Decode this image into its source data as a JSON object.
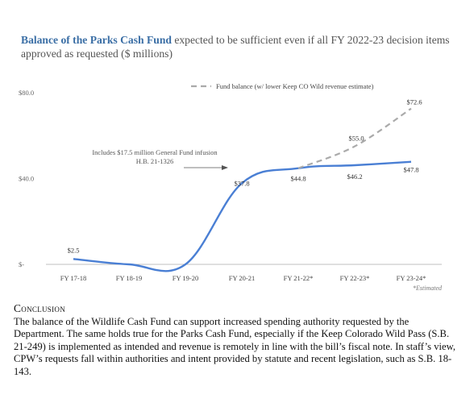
{
  "title_lead": "Balance of the Parks Cash Fund",
  "title_rest": " expected to be sufficient even if all FY 2022-23 decision items approved as requested ($ millions)",
  "chart_data": {
    "type": "line",
    "categories": [
      "FY 17-18",
      "FY 18-19",
      "FY 19-20",
      "FY 20-21",
      "FY 21-22*",
      "FY 22-23*",
      "FY 23-24*"
    ],
    "y_ticks": [
      "$80.0",
      "$40.0",
      "$-"
    ],
    "ylim": [
      0,
      80
    ],
    "series": [
      {
        "name": "",
        "color": "#4a7fd4",
        "style": "solid",
        "values": [
          2.5,
          0,
          0,
          37.8,
          44.8,
          46.2,
          47.8
        ],
        "labels": [
          "$2.5",
          "",
          "",
          "$37.8",
          "$44.8",
          "$46.2",
          "$47.8"
        ]
      },
      {
        "name": "Fund balance (w/ lower Keep CO Wild revenue estimate)",
        "color": "#aaaaaa",
        "style": "dashed",
        "values": [
          null,
          null,
          null,
          null,
          44.8,
          55.0,
          72.6
        ],
        "labels": [
          "",
          "",
          "",
          "",
          "",
          "$55.0",
          "$72.6"
        ]
      }
    ],
    "annotation": [
      "Includes $17.5 million General Fund infusion",
      "H.B. 21-1326"
    ],
    "footnote": "*Estimated",
    "legend_position": "top-right",
    "grid": false
  },
  "conclusion": {
    "heading": "Conclusion",
    "body": "The balance of the Wildlife Cash Fund can support increased spending authority requested by the Department. The same holds true for the Parks Cash Fund, especially if the Keep Colorado Wild Pass (S.B. 21-249) is implemented as intended and revenue is remotely in line with the bill’s fiscal note. In staff’s view, CPW’s requests fall within authorities and intent provided by statute and recent legislation, such as S.B. 18-143."
  }
}
